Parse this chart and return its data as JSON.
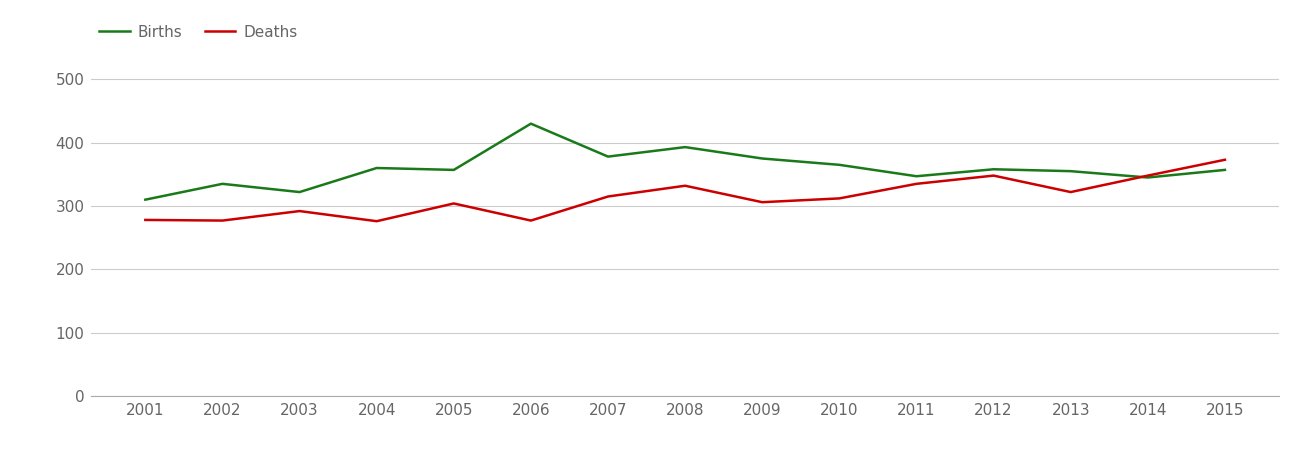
{
  "years": [
    2001,
    2002,
    2003,
    2004,
    2005,
    2006,
    2007,
    2008,
    2009,
    2010,
    2011,
    2012,
    2013,
    2014,
    2015
  ],
  "births": [
    310,
    335,
    322,
    360,
    357,
    430,
    378,
    393,
    375,
    365,
    347,
    358,
    355,
    345,
    357
  ],
  "deaths": [
    278,
    277,
    292,
    276,
    304,
    277,
    315,
    332,
    306,
    312,
    335,
    348,
    322,
    348,
    373
  ],
  "births_color": "#1a7a1a",
  "deaths_color": "#cc0000",
  "line_width": 1.8,
  "ylim": [
    0,
    540
  ],
  "yticks": [
    0,
    100,
    200,
    300,
    400,
    500
  ],
  "background_color": "#ffffff",
  "grid_color": "#cccccc",
  "legend_labels": [
    "Births",
    "Deaths"
  ],
  "legend_fontsize": 11,
  "tick_fontsize": 11,
  "tick_color": "#666666",
  "figure_width": 13.05,
  "figure_height": 4.5
}
